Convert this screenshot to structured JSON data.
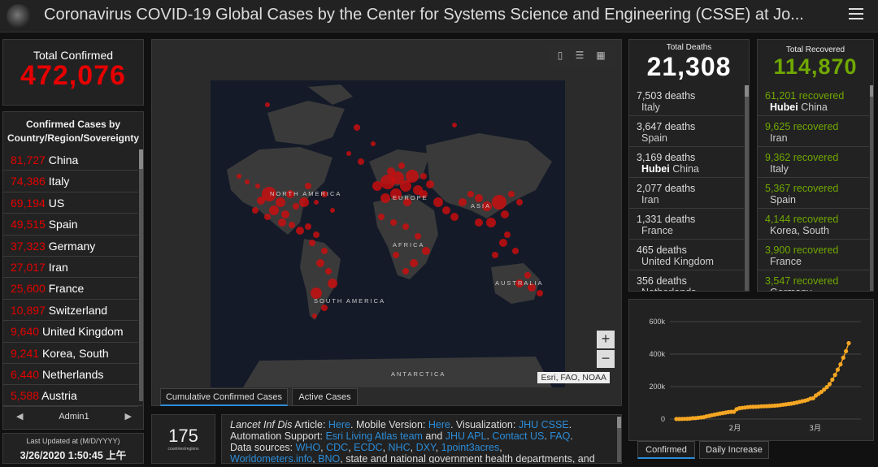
{
  "header": {
    "title": "Coronavirus COVID-19 Global Cases by the Center for Systems Science and Engineering (CSSE) at Jo..."
  },
  "total_confirmed": {
    "label": "Total Confirmed",
    "value": "472,076"
  },
  "country_list": {
    "heading": "Confirmed Cases by Country/Region/Sovereignty",
    "items": [
      {
        "num": "81,727",
        "name": "China"
      },
      {
        "num": "74,386",
        "name": "Italy"
      },
      {
        "num": "69,194",
        "name": "US"
      },
      {
        "num": "49,515",
        "name": "Spain"
      },
      {
        "num": "37,323",
        "name": "Germany"
      },
      {
        "num": "27,017",
        "name": "Iran"
      },
      {
        "num": "25,600",
        "name": "France"
      },
      {
        "num": "10,897",
        "name": "Switzerland"
      },
      {
        "num": "9,640",
        "name": "United Kingdom"
      },
      {
        "num": "9,241",
        "name": "Korea, South"
      },
      {
        "num": "6,440",
        "name": "Netherlands"
      },
      {
        "num": "5,588",
        "name": "Austria"
      }
    ],
    "pager_label": "Admin1"
  },
  "last_updated": {
    "label": "Last Updated at (M/D/YYYY)",
    "value": "3/26/2020 1:50:45 上午"
  },
  "map": {
    "labels": {
      "north_america": "NORTH AMERICA",
      "south_america": "SOUTH AMERICA",
      "europe": "EUROPE",
      "africa": "AFRICA",
      "asia": "ASIA",
      "australia": "AUSTRALIA",
      "antarctica": "ANTARCTICA"
    },
    "attribution": "Esri, FAO, NOAA",
    "zoom_in": "+",
    "zoom_out": "−",
    "tabs": [
      "Cumulative Confirmed Cases",
      "Active Cases"
    ],
    "active_tab": 0
  },
  "country_count": {
    "value": "175",
    "label": "countries/regions"
  },
  "info": {
    "p1_italic": "Lancet Inf Dis",
    "p1_a": " Article: ",
    "p1_link1": "Here",
    "p1_b": ". Mobile Version: ",
    "p1_link2": "Here",
    "p1_c": ". Visualization: ",
    "p1_link3": "JHU CSSE",
    "p1_d": ". Automation Support: ",
    "p1_link4": "Esri Living Atlas team",
    "p1_e": " and ",
    "p1_link5": "JHU APL",
    "p1_f": ". ",
    "p1_link6": "Contact US",
    "p1_g": ". ",
    "p1_link7": "FAQ",
    "p1_h": ".",
    "p2_a": "Data sources: ",
    "p2_links": [
      "WHO",
      "CDC",
      "ECDC",
      "NHC",
      "DXY",
      "1point3acres"
    ],
    "p2_sep": ", ",
    "p3_link": "Worldometers.info",
    "p3_link2": "BNO",
    "p3_rest": ", state and national government health departments, and local"
  },
  "deaths": {
    "label": "Total Deaths",
    "value": "21,308",
    "items": [
      {
        "num": "7,503",
        "suffix": "deaths",
        "bold": "",
        "place": "Italy"
      },
      {
        "num": "3,647",
        "suffix": "deaths",
        "bold": "",
        "place": "Spain"
      },
      {
        "num": "3,169",
        "suffix": "deaths",
        "bold": "Hubei",
        "place": "China"
      },
      {
        "num": "2,077",
        "suffix": "deaths",
        "bold": "",
        "place": "Iran"
      },
      {
        "num": "1,331",
        "suffix": "deaths",
        "bold": "",
        "place": "France"
      },
      {
        "num": "465",
        "suffix": "deaths",
        "bold": "",
        "place": "United Kingdom"
      },
      {
        "num": "356",
        "suffix": "deaths",
        "bold": "",
        "place": "Netherlands"
      }
    ]
  },
  "recovered": {
    "label": "Total Recovered",
    "value": "114,870",
    "items": [
      {
        "num": "61,201",
        "suffix": "recovered",
        "bold": "Hubei",
        "place": "China"
      },
      {
        "num": "9,625",
        "suffix": "recovered",
        "bold": "",
        "place": "Iran"
      },
      {
        "num": "9,362",
        "suffix": "recovered",
        "bold": "",
        "place": "Italy"
      },
      {
        "num": "5,367",
        "suffix": "recovered",
        "bold": "",
        "place": "Spain"
      },
      {
        "num": "4,144",
        "suffix": "recovered",
        "bold": "",
        "place": "Korea, South"
      },
      {
        "num": "3,900",
        "suffix": "recovered",
        "bold": "",
        "place": "France"
      },
      {
        "num": "3,547",
        "suffix": "recovered",
        "bold": "",
        "place": "Germany"
      }
    ]
  },
  "chart_tabs": [
    "Confirmed",
    "Daily Increase"
  ],
  "chart_data": {
    "type": "line",
    "y_ticks": [
      "0",
      "200k",
      "400k",
      "600k"
    ],
    "x_ticks": [
      "2月",
      "3月"
    ],
    "ylim": [
      0,
      600000
    ],
    "color": "#f5a623",
    "series": [
      {
        "values": [
          555,
          653,
          941,
          1438,
          2118,
          2927,
          5578,
          6166,
          8234,
          9927,
          12038,
          16787,
          19881,
          23892,
          27635,
          30817,
          34391,
          37120,
          40150,
          42762,
          44802,
          45221,
          60368,
          66885,
          69030,
          71224,
          73258,
          75136,
          75639,
          76197,
          76819,
          78572,
          78958,
          79561,
          80406,
          81388,
          82746,
          84112,
          86011,
          88369,
          90306,
          92840,
          95120,
          97886,
          101801,
          105847,
          109821,
          113590,
          118620,
          125875,
          128352,
          145205,
          156101,
          167454,
          181574,
          197102,
          214821,
          242570,
          272208,
          304507,
          336953,
          378235,
          418045,
          467653
        ]
      }
    ]
  }
}
